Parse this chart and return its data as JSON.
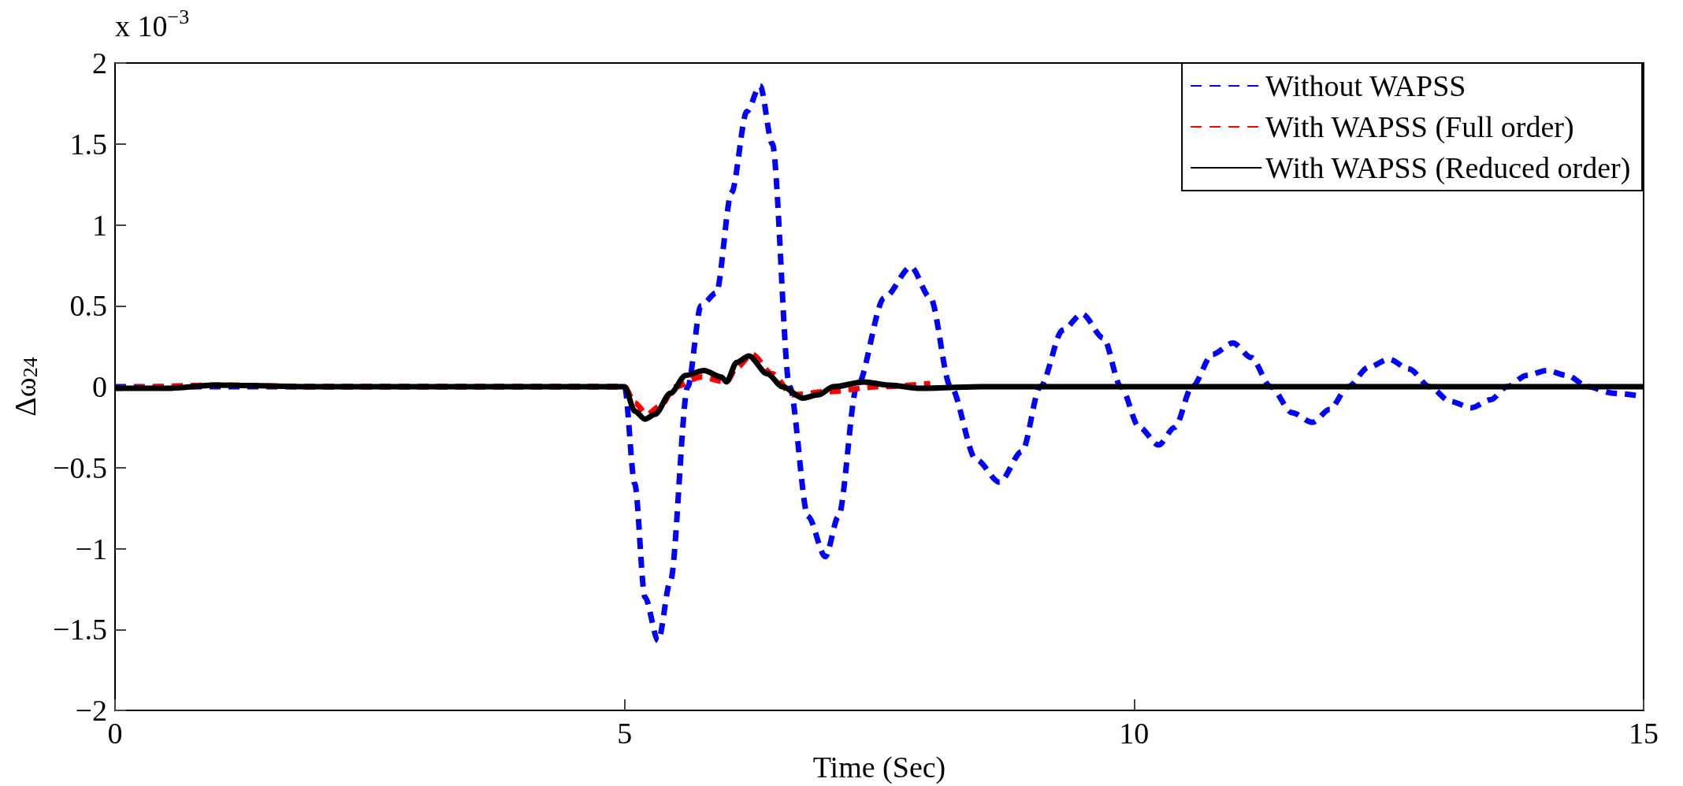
{
  "chart_data": {
    "type": "line",
    "xlabel": "Time (Sec)",
    "ylabel": "Δω$_{24}$",
    "annotations": [
      "x 10$^{−3}$"
    ],
    "xlim": [
      0,
      15
    ],
    "xticks": [
      0,
      5,
      10,
      15
    ],
    "ylim": [
      -2,
      2
    ],
    "yticks": [
      {
        "value": -2,
        "label": "−2"
      },
      {
        "value": -1.5,
        "label": "−1.5"
      },
      {
        "value": -1,
        "label": "−1"
      },
      {
        "value": -0.5,
        "label": "−0.5"
      },
      0,
      0.5,
      1,
      1.5,
      2
    ],
    "grid": false,
    "legend": "top right",
    "marker": "none",
    "series": [
      {
        "name": "Without WAPSS",
        "color": "#0000ff",
        "line_style": "dashed",
        "x": [
          0,
          1,
          2,
          3,
          4,
          5,
          5.1,
          5.2,
          5.33,
          5.45,
          5.62,
          5.75,
          5.9,
          6.05,
          6.2,
          6.33,
          6.45,
          6.62,
          6.8,
          6.97,
          7.1,
          7.28,
          7.55,
          7.81,
          8.0,
          8.2,
          8.45,
          8.68,
          8.9,
          9.08,
          9.3,
          9.49,
          9.7,
          9.87,
          10.05,
          10.24,
          10.4,
          10.57,
          10.77,
          10.97,
          11.15,
          11.34,
          11.55,
          11.75,
          11.92,
          12.1,
          12.3,
          12.5,
          12.7,
          12.9,
          13.1,
          13.31,
          13.5,
          13.66,
          13.85,
          14.05,
          14.25,
          14.45,
          14.7,
          15
        ],
        "values": [
          0,
          0,
          0,
          0,
          0,
          0,
          -0.6,
          -1.3,
          -1.57,
          -1.2,
          0,
          0.5,
          0.58,
          1.2,
          1.7,
          1.86,
          1.5,
          0,
          -0.8,
          -1.05,
          -0.8,
          0,
          0.55,
          0.74,
          0.55,
          0,
          -0.45,
          -0.59,
          -0.4,
          0,
          0.35,
          0.45,
          0.3,
          0,
          -0.25,
          -0.36,
          -0.25,
          0,
          0.2,
          0.27,
          0.18,
          0,
          -0.16,
          -0.22,
          -0.14,
          0,
          0.12,
          0.17,
          0.11,
          0,
          -0.09,
          -0.13,
          -0.08,
          0,
          0.07,
          0.1,
          0.07,
          0,
          -0.04,
          -0.06
        ]
      },
      {
        "name": "With WAPSS (Full order)",
        "color": "#ff0000",
        "line_style": "dashed",
        "x": [
          0,
          1,
          2,
          3,
          4,
          5,
          5.1,
          5.22,
          5.35,
          5.5,
          5.75,
          6.0,
          6.1,
          6.25,
          6.45,
          6.65,
          7.0,
          7.5,
          8.0
        ],
        "values": [
          -0.01,
          0.01,
          0,
          0,
          0,
          0,
          -0.1,
          -0.17,
          -0.12,
          0,
          0.06,
          0.03,
          0.12,
          0.2,
          0.08,
          -0.05,
          -0.03,
          0,
          0.02
        ]
      },
      {
        "name": "With WAPSS (Reduced order)",
        "color": "#000000",
        "line_style": "solid",
        "x": [
          0,
          0.5,
          1,
          2,
          3,
          4,
          5,
          5.1,
          5.2,
          5.3,
          5.45,
          5.6,
          5.78,
          5.95,
          6.0,
          6.1,
          6.22,
          6.4,
          6.55,
          6.75,
          6.9,
          7.05,
          7.35,
          7.6,
          7.9,
          8.5,
          9,
          10,
          12,
          15
        ],
        "values": [
          -0.01,
          -0.01,
          0.01,
          0,
          0,
          0,
          0,
          -0.15,
          -0.2,
          -0.17,
          -0.04,
          0.07,
          0.1,
          0.06,
          0.03,
          0.15,
          0.19,
          0.08,
          0,
          -0.07,
          -0.05,
          0,
          0.03,
          0.01,
          -0.01,
          0,
          0,
          0,
          0,
          0
        ]
      }
    ]
  }
}
